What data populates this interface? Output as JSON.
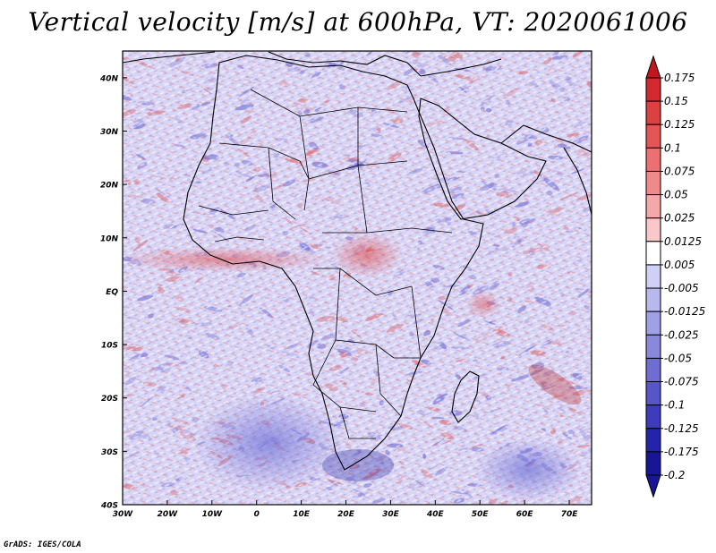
{
  "title": "Vertical velocity [m/s] at 600hPa, VT: 2020061006",
  "credit": "GrADS: IGES/COLA",
  "map": {
    "lat_labels": [
      "40N",
      "30N",
      "20N",
      "10N",
      "EQ",
      "10S",
      "20S",
      "30S",
      "40S"
    ],
    "lon_labels": [
      "30W",
      "20W",
      "10W",
      "0",
      "10E",
      "20E",
      "30E",
      "40E",
      "50E",
      "60E",
      "70E"
    ],
    "lat_range": [
      -40,
      45
    ],
    "lon_range": [
      -30,
      75
    ]
  },
  "colorbar": {
    "labels": [
      "0.175",
      "0.15",
      "0.125",
      "0.1",
      "0.075",
      "0.05",
      "0.025",
      "0.0125",
      "0.005",
      "-0.005",
      "-0.0125",
      "-0.025",
      "-0.05",
      "-0.075",
      "-0.1",
      "-0.125",
      "-0.175",
      "-0.2"
    ],
    "colors": [
      "#c2161c",
      "#d22a2e",
      "#dc4040",
      "#e45656",
      "#ec7070",
      "#f08a8a",
      "#f5a8a8",
      "#fac8c8",
      "#ffffff",
      "#d0d0f6",
      "#b8b8ee",
      "#a0a0e6",
      "#8888dc",
      "#6e6ed2",
      "#5656c8",
      "#3c3cbc",
      "#2424aa",
      "#161696"
    ]
  },
  "colors": {
    "background": "#ffffff",
    "field_neutral": "#d8d4f4",
    "positive": "#e05555",
    "negative": "#5555d0"
  }
}
